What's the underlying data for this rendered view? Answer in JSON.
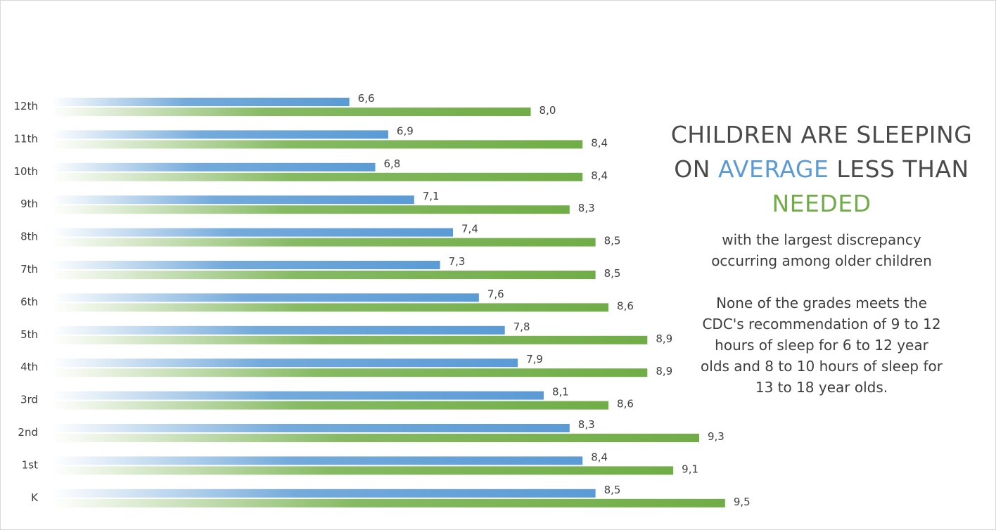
{
  "chart_data": {
    "type": "bar",
    "orientation": "horizontal",
    "categories": [
      "12th",
      "11th",
      "10th",
      "9th",
      "8th",
      "7th",
      "6th",
      "5th",
      "4th",
      "3rd",
      "2nd",
      "1st",
      "K"
    ],
    "series": [
      {
        "color": "#5b9bd5",
        "values": [
          6.6,
          6.9,
          6.8,
          7.1,
          7.4,
          7.3,
          7.6,
          7.8,
          7.9,
          8.1,
          8.3,
          8.4,
          8.5
        ],
        "labels": [
          "6,6",
          "6,9",
          "6,8",
          "7,1",
          "7,4",
          "7,3",
          "7,6",
          "7,8",
          "7,9",
          "8,1",
          "8,3",
          "8,4",
          "8,5"
        ]
      },
      {
        "color": "#70ad47",
        "values": [
          8.0,
          8.4,
          8.4,
          8.3,
          8.5,
          8.5,
          8.6,
          8.9,
          8.9,
          8.6,
          9.3,
          9.1,
          9.5
        ],
        "labels": [
          "8,0",
          "8,4",
          "8,4",
          "8,3",
          "8,5",
          "8,5",
          "8,6",
          "8,9",
          "8,9",
          "8,6",
          "9,3",
          "9,1",
          "9,5"
        ]
      }
    ],
    "xlim": [
      4.3,
      9.5
    ],
    "grid": false,
    "legend": "none",
    "axis_lines": false
  },
  "headline": {
    "line1": "CHILDREN ARE SLEEPING",
    "line2_prefix": "ON ",
    "line2_highlight": "AVERAGE",
    "line2_suffix": " LESS THAN",
    "line3": "NEEDED"
  },
  "subtext": "with the largest discrepancy occurring among older children",
  "note": "None of the grades meets the CDC's recommendation of 9 to 12 hours of sleep for 6 to 12 year olds and 8 to 10 hours of sleep for 13 to 18 year olds.",
  "colors": {
    "average": "#5b9bd5",
    "needed": "#70ad47",
    "text": "#404040"
  }
}
